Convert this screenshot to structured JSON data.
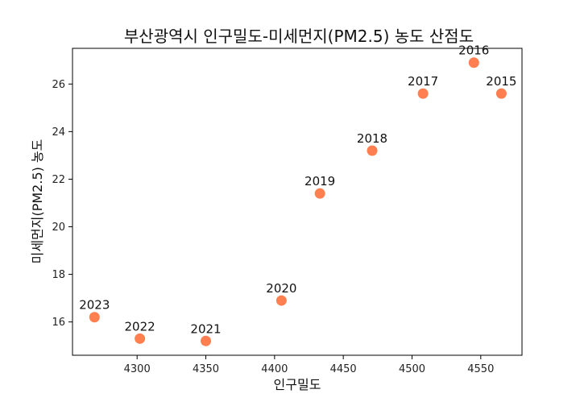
{
  "chart_data": {
    "type": "scatter",
    "title": "부산광역시 인구밀도-미세먼지(PM2.5) 농도 산점도",
    "xlabel": "인구밀도",
    "ylabel": "미세먼지(PM2.5) 농도",
    "xlim": [
      4253,
      4580
    ],
    "ylim": [
      14.6,
      27.5
    ],
    "xticks": [
      4300,
      4350,
      4400,
      4450,
      4500,
      4550
    ],
    "yticks": [
      16,
      18,
      20,
      22,
      24,
      26
    ],
    "grid": false,
    "point_color": "#ff7f50",
    "points": [
      {
        "label": "2015",
        "x": 4565,
        "y": 25.6
      },
      {
        "label": "2016",
        "x": 4545,
        "y": 26.9
      },
      {
        "label": "2017",
        "x": 4508,
        "y": 25.6
      },
      {
        "label": "2018",
        "x": 4471,
        "y": 23.2
      },
      {
        "label": "2019",
        "x": 4433,
        "y": 21.4
      },
      {
        "label": "2020",
        "x": 4405,
        "y": 16.9
      },
      {
        "label": "2021",
        "x": 4350,
        "y": 15.2
      },
      {
        "label": "2022",
        "x": 4302,
        "y": 15.3
      },
      {
        "label": "2023",
        "x": 4269,
        "y": 16.2
      }
    ]
  }
}
